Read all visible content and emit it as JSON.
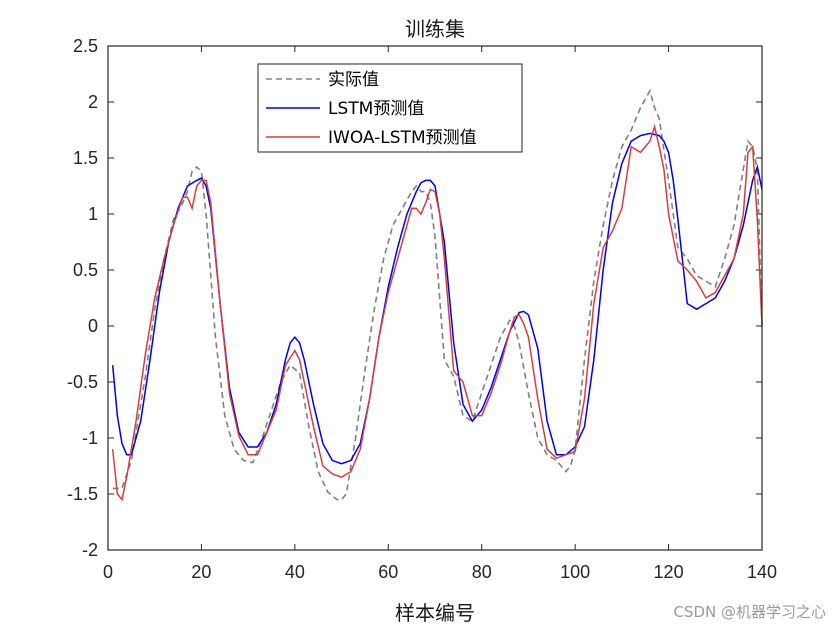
{
  "chart_data": {
    "type": "line",
    "title": "训练集",
    "xlabel": "样本编号",
    "ylabel": "",
    "xlim": [
      0,
      140
    ],
    "ylim": [
      -2,
      2.5
    ],
    "xticks": [
      0,
      20,
      40,
      60,
      80,
      100,
      120,
      140
    ],
    "yticks": [
      -2,
      -1.5,
      -1,
      -0.5,
      0,
      0.5,
      1,
      1.5,
      2,
      2.5
    ],
    "xtick_labels": [
      "0",
      "20",
      "40",
      "60",
      "80",
      "100",
      "120",
      "140"
    ],
    "ytick_labels": [
      "-2",
      "-1.5",
      "-1",
      "-0.5",
      "0",
      "0.5",
      "1",
      "1.5",
      "2",
      "2.5"
    ],
    "legend_position": "top-center",
    "series": [
      {
        "name": "实际值",
        "color": "#808080",
        "style": "dashed",
        "x": [
          1,
          3,
          5,
          8,
          10,
          12,
          14,
          16,
          17,
          18,
          19,
          20,
          21,
          23,
          25,
          27,
          29,
          31,
          33,
          35,
          37,
          39,
          41,
          43,
          45,
          47,
          49,
          50,
          51,
          53,
          55,
          57,
          59,
          61,
          63,
          65,
          66,
          67,
          68,
          69,
          70,
          72,
          74,
          76,
          78,
          80,
          82,
          84,
          86,
          87,
          88,
          90,
          92,
          94,
          96,
          98,
          99,
          100,
          102,
          104,
          106,
          108,
          110,
          112,
          114,
          116,
          117,
          118,
          120,
          122,
          124,
          126,
          128,
          130,
          132,
          134,
          136,
          137,
          138,
          139,
          140
        ],
        "y": [
          -1.45,
          -1.45,
          -1.2,
          -0.45,
          0.15,
          0.6,
          0.95,
          1.1,
          1.2,
          1.38,
          1.42,
          1.38,
          1.0,
          -0.1,
          -0.8,
          -1.1,
          -1.2,
          -1.22,
          -1.0,
          -0.75,
          -0.5,
          -0.35,
          -0.42,
          -0.9,
          -1.3,
          -1.48,
          -1.55,
          -1.55,
          -1.5,
          -1.0,
          -0.4,
          0.15,
          0.6,
          0.9,
          1.05,
          1.2,
          1.25,
          1.2,
          1.2,
          1.1,
          0.8,
          -0.3,
          -0.45,
          -0.8,
          -0.85,
          -0.6,
          -0.35,
          -0.1,
          0.05,
          0.0,
          -0.15,
          -0.6,
          -1.0,
          -1.15,
          -1.2,
          -1.3,
          -1.25,
          -1.1,
          -0.3,
          0.4,
          0.9,
          1.3,
          1.6,
          1.75,
          1.95,
          2.1,
          1.95,
          1.85,
          1.3,
          0.7,
          0.6,
          0.45,
          0.4,
          0.35,
          0.6,
          0.9,
          1.4,
          1.65,
          1.6,
          1.4,
          0.0
        ]
      },
      {
        "name": "LSTM预测值",
        "color": "#0000e6",
        "style": "solid",
        "x": [
          1,
          2,
          3,
          4,
          5,
          7,
          9,
          11,
          13,
          15,
          17,
          19,
          20,
          21,
          22,
          24,
          26,
          28,
          30,
          32,
          34,
          36,
          38,
          39,
          40,
          41,
          42,
          44,
          46,
          48,
          50,
          52,
          54,
          56,
          58,
          60,
          62,
          64,
          66,
          67,
          68,
          69,
          70,
          72,
          74,
          76,
          78,
          80,
          82,
          84,
          86,
          88,
          89,
          90,
          92,
          94,
          96,
          98,
          100,
          102,
          104,
          106,
          108,
          110,
          112,
          114,
          116,
          118,
          119,
          120,
          121,
          122,
          124,
          126,
          128,
          130,
          132,
          134,
          136,
          138,
          139,
          140
        ],
        "y": [
          -0.35,
          -0.8,
          -1.05,
          -1.15,
          -1.15,
          -0.85,
          -0.3,
          0.3,
          0.75,
          1.05,
          1.25,
          1.3,
          1.32,
          1.25,
          1.05,
          0.2,
          -0.55,
          -0.95,
          -1.08,
          -1.08,
          -0.95,
          -0.7,
          -0.3,
          -0.15,
          -0.1,
          -0.15,
          -0.3,
          -0.7,
          -1.05,
          -1.2,
          -1.23,
          -1.2,
          -1.05,
          -0.65,
          -0.1,
          0.35,
          0.7,
          1.0,
          1.2,
          1.28,
          1.3,
          1.3,
          1.25,
          0.75,
          -0.15,
          -0.7,
          -0.85,
          -0.75,
          -0.55,
          -0.3,
          -0.05,
          0.12,
          0.13,
          0.1,
          -0.2,
          -0.85,
          -1.15,
          -1.15,
          -1.08,
          -0.9,
          -0.3,
          0.5,
          1.1,
          1.45,
          1.65,
          1.7,
          1.72,
          1.7,
          1.65,
          1.55,
          1.3,
          0.95,
          0.2,
          0.15,
          0.2,
          0.25,
          0.4,
          0.6,
          0.9,
          1.3,
          1.42,
          1.22
        ]
      },
      {
        "name": "IWOA-LSTM预测值",
        "color": "#d04040",
        "style": "solid",
        "x": [
          1,
          2,
          3,
          4,
          6,
          8,
          10,
          12,
          14,
          16,
          17,
          18,
          19,
          20,
          21,
          22,
          24,
          26,
          28,
          30,
          32,
          34,
          36,
          38,
          40,
          41,
          42,
          44,
          46,
          48,
          50,
          52,
          54,
          56,
          58,
          60,
          62,
          64,
          65,
          66,
          67,
          68,
          69,
          70,
          71,
          72,
          74,
          76,
          78,
          80,
          82,
          84,
          86,
          87,
          88,
          89,
          90,
          92,
          94,
          96,
          98,
          100,
          102,
          104,
          106,
          108,
          110,
          112,
          114,
          116,
          117,
          118,
          119,
          120,
          122,
          124,
          126,
          128,
          130,
          132,
          134,
          136,
          137,
          138,
          139,
          140
        ],
        "y": [
          -1.1,
          -1.5,
          -1.55,
          -1.35,
          -0.85,
          -0.25,
          0.25,
          0.6,
          0.9,
          1.15,
          1.15,
          1.05,
          1.25,
          1.3,
          1.3,
          1.1,
          0.2,
          -0.6,
          -0.98,
          -1.15,
          -1.15,
          -0.95,
          -0.75,
          -0.35,
          -0.22,
          -0.3,
          -0.5,
          -0.9,
          -1.25,
          -1.32,
          -1.35,
          -1.3,
          -1.1,
          -0.65,
          -0.1,
          0.3,
          0.6,
          0.9,
          1.05,
          1.05,
          1.0,
          1.1,
          1.22,
          1.2,
          1.0,
          0.6,
          -0.4,
          -0.5,
          -0.8,
          -0.8,
          -0.6,
          -0.35,
          -0.05,
          0.08,
          0.1,
          0.02,
          -0.1,
          -0.65,
          -1.1,
          -1.18,
          -1.15,
          -1.12,
          -0.65,
          0.2,
          0.7,
          0.85,
          1.05,
          1.6,
          1.55,
          1.65,
          1.78,
          1.6,
          1.4,
          1.0,
          0.58,
          0.5,
          0.4,
          0.25,
          0.3,
          0.45,
          0.6,
          1.0,
          1.55,
          1.6,
          0.95,
          0.0
        ]
      }
    ]
  },
  "watermark": "CSDN @机器学习之心"
}
